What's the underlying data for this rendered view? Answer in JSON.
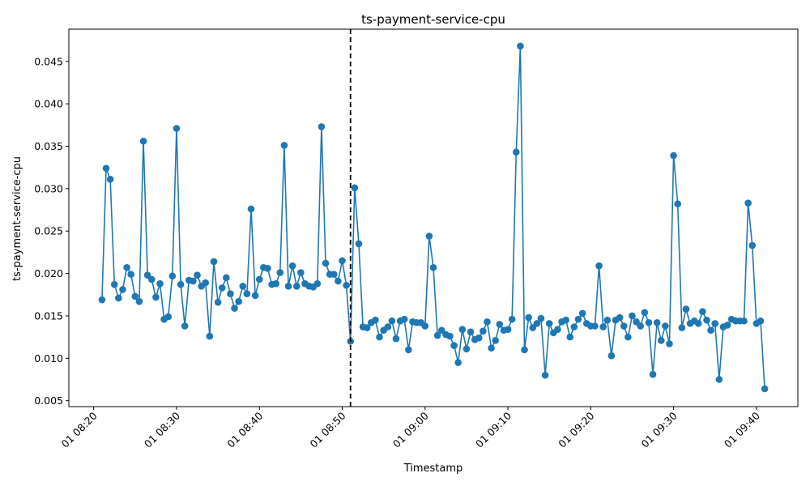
{
  "chart_data": {
    "type": "line",
    "title": "ts-payment-service-cpu",
    "xlabel": "Timestamp",
    "ylabel": "ts-payment-service-cpu",
    "x_start": "2024-01-01T08:21:00",
    "x_step_minutes": 0.5,
    "values": [
      0.0169,
      0.0324,
      0.0311,
      0.0187,
      0.0171,
      0.0181,
      0.0207,
      0.0199,
      0.0173,
      0.0167,
      0.0356,
      0.0198,
      0.0193,
      0.0172,
      0.0188,
      0.0146,
      0.0149,
      0.0197,
      0.0371,
      0.0187,
      0.0138,
      0.0192,
      0.0191,
      0.0198,
      0.0185,
      0.0189,
      0.0126,
      0.0214,
      0.0166,
      0.0183,
      0.0195,
      0.0176,
      0.0159,
      0.0167,
      0.0185,
      0.0176,
      0.0276,
      0.0174,
      0.0193,
      0.0207,
      0.0206,
      0.0187,
      0.0188,
      0.0201,
      0.0351,
      0.0185,
      0.0209,
      0.0185,
      0.0201,
      0.0188,
      0.0185,
      0.0184,
      0.0188,
      0.0373,
      0.0212,
      0.0199,
      0.0199,
      0.0191,
      0.0215,
      0.0186,
      0.012,
      0.0301,
      0.0235,
      0.0137,
      0.0136,
      0.0142,
      0.0145,
      0.0125,
      0.0133,
      0.0137,
      0.0144,
      0.0123,
      0.0144,
      0.0146,
      0.011,
      0.0143,
      0.0142,
      0.0142,
      0.0138,
      0.0244,
      0.0207,
      0.0127,
      0.0133,
      0.0128,
      0.0126,
      0.0115,
      0.0095,
      0.0134,
      0.0111,
      0.0131,
      0.0122,
      0.0124,
      0.0132,
      0.0143,
      0.0112,
      0.0121,
      0.014,
      0.0133,
      0.0134,
      0.0146,
      0.0343,
      0.0468,
      0.011,
      0.0148,
      0.0136,
      0.0141,
      0.0147,
      0.008,
      0.0141,
      0.013,
      0.0134,
      0.0143,
      0.0145,
      0.0125,
      0.0137,
      0.0146,
      0.0153,
      0.0141,
      0.0138,
      0.0138,
      0.0209,
      0.0137,
      0.0145,
      0.0103,
      0.0145,
      0.0148,
      0.0138,
      0.0125,
      0.015,
      0.0143,
      0.0138,
      0.0154,
      0.0142,
      0.0081,
      0.0142,
      0.0121,
      0.0138,
      0.0117,
      0.0339,
      0.0282,
      0.0136,
      0.0158,
      0.0141,
      0.0144,
      0.0141,
      0.0155,
      0.0145,
      0.0133,
      0.0141,
      0.0075,
      0.0137,
      0.0139,
      0.0146,
      0.0144,
      0.0144,
      0.0144,
      0.0283,
      0.0233,
      0.0141,
      0.0144,
      0.0064
    ],
    "xlim": [
      "2024-01-01T08:17:00",
      "2024-01-01T09:45:00"
    ],
    "ylim": [
      0.0043,
      0.0488
    ],
    "x_ticks": [
      "01 08:20",
      "01 08:30",
      "01 08:40",
      "01 08:50",
      "01 09:00",
      "01 09:10",
      "01 09:20",
      "01 09:30",
      "01 09:40"
    ],
    "y_ticks": [
      "0.005",
      "0.010",
      "0.015",
      "0.020",
      "0.025",
      "0.030",
      "0.035",
      "0.040",
      "0.045"
    ],
    "y_tick_values": [
      0.005,
      0.01,
      0.015,
      0.02,
      0.025,
      0.03,
      0.035,
      0.04,
      0.045
    ],
    "vline_time": "2024-01-01T08:51:00",
    "grid": false,
    "line_color": "#1f77b4",
    "vline_color": "#000000"
  }
}
